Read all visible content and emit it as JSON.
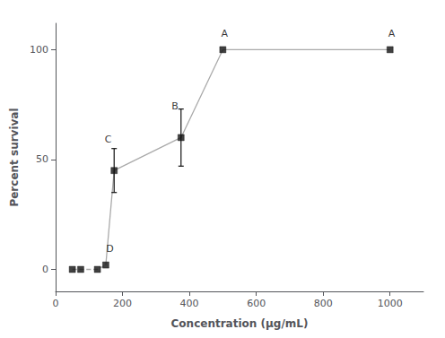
{
  "chart_data": {
    "type": "line",
    "xlabel": "Concentration (μg/mL)",
    "ylabel": "Percent survival",
    "xlim": [
      0,
      1100
    ],
    "ylim": [
      -10,
      112
    ],
    "xticks": [
      0,
      200,
      400,
      600,
      800,
      1000
    ],
    "yticks": [
      0,
      50,
      100
    ],
    "grid": false,
    "series": [
      {
        "type": "line",
        "line_style": "dashed",
        "color": "#aaaaaa",
        "x": [
          50,
          75,
          125,
          150
        ],
        "values": [
          0,
          0,
          0,
          2
        ]
      },
      {
        "type": "line",
        "line_style": "solid",
        "color": "#aaaaaa",
        "x": [
          150,
          175,
          375,
          500,
          1000
        ],
        "values": [
          2,
          45,
          60,
          100,
          100
        ]
      },
      {
        "type": "scatter",
        "marker": "square",
        "color": "#111111",
        "x": [
          50,
          75,
          125,
          150,
          175,
          375,
          500,
          1000
        ],
        "values": [
          0,
          0,
          0,
          2,
          45,
          60,
          100,
          100
        ],
        "yerr": [
          0,
          0,
          0,
          0,
          10,
          13,
          0,
          0
        ]
      }
    ],
    "annotations": [
      {
        "label": "D",
        "x": 150,
        "y": 2,
        "dx": 12,
        "dy": 5
      },
      {
        "label": "C",
        "x": 175,
        "y": 45,
        "dx": -18,
        "dy": 12
      },
      {
        "label": "B",
        "x": 375,
        "y": 60,
        "dx": -18,
        "dy": 12
      },
      {
        "label": "A",
        "x": 500,
        "y": 100,
        "dx": 5,
        "dy": 5
      },
      {
        "label": "A",
        "x": 1000,
        "y": 100,
        "dx": 5,
        "dy": 5
      }
    ]
  }
}
